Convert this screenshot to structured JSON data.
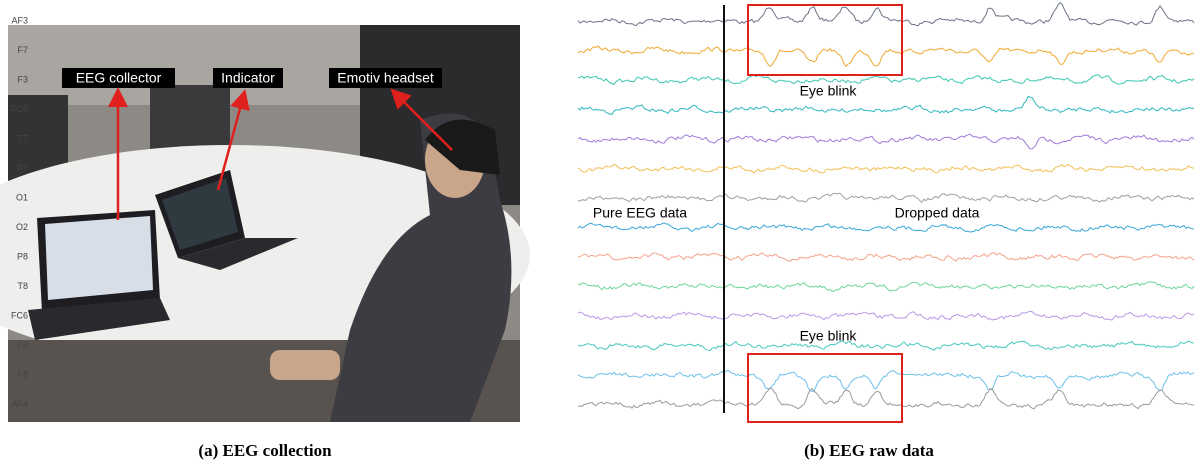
{
  "panel_a": {
    "labels": [
      "EEG collector",
      "Indicator",
      "Emotiv headset"
    ],
    "caption": "(a) EEG collection"
  },
  "panel_b": {
    "channels": [
      {
        "label": "AF3",
        "color": "#6b7386"
      },
      {
        "label": "F7",
        "color": "#f0a830"
      },
      {
        "label": "F3",
        "color": "#3cc8b0"
      },
      {
        "label": "FC5",
        "color": "#2fb8c0"
      },
      {
        "label": "T7",
        "color": "#a07ad8"
      },
      {
        "label": "P7",
        "color": "#f3bf55"
      },
      {
        "label": "O1",
        "color": "#9aa0a8"
      },
      {
        "label": "O2",
        "color": "#3aa8d8"
      },
      {
        "label": "P8",
        "color": "#f4a28a"
      },
      {
        "label": "T8",
        "color": "#6ed49a"
      },
      {
        "label": "FC6",
        "color": "#b89ae6"
      },
      {
        "label": "F4",
        "color": "#48c8c0"
      },
      {
        "label": "F8",
        "color": "#6cc0ea"
      },
      {
        "label": "AF4",
        "color": "#9a9a9a"
      }
    ],
    "annotations": {
      "eye_blink_top": "Eye blink",
      "eye_blink_bottom": "Eye blink",
      "pure": "Pure EEG data",
      "dropped": "Dropped data"
    },
    "caption": "(b) EEG raw data"
  }
}
